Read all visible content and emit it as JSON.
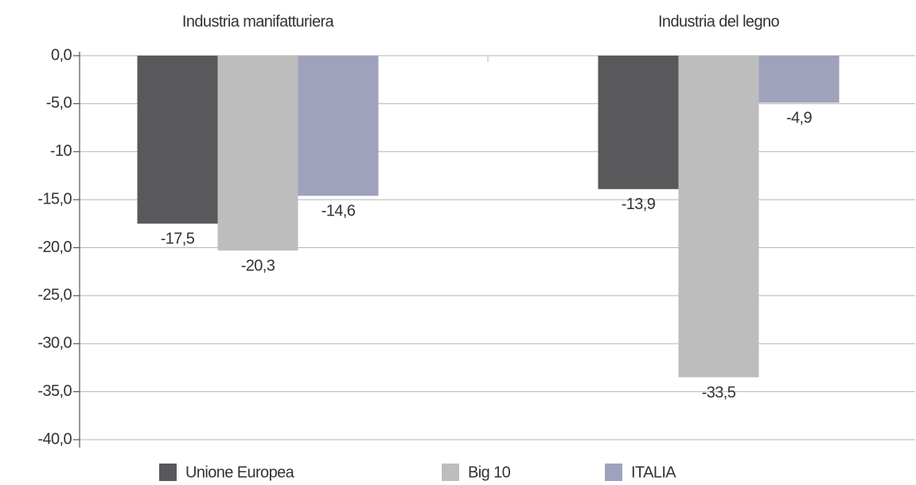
{
  "chart_data": {
    "type": "bar",
    "categories": [
      "Industria manifatturiera",
      "Industria del legno"
    ],
    "series": [
      {
        "name": "Unione Europea",
        "color": "#59595b",
        "values": [
          -17.5,
          -13.9
        ],
        "value_labels": [
          "-17,5",
          "-13,9"
        ]
      },
      {
        "name": "Big 10",
        "color": "#bdbdbd",
        "values": [
          -20.3,
          -33.5
        ],
        "value_labels": [
          "-20,3",
          "-33,5"
        ]
      },
      {
        "name": "ITALIA",
        "color": "#9fa2bd",
        "values": [
          -14.6,
          -4.9
        ],
        "value_labels": [
          "-14,6",
          "-4,9"
        ]
      }
    ],
    "ylim": [
      -40,
      0
    ],
    "yticks": [
      {
        "value": 0,
        "label": "0,0"
      },
      {
        "value": -5,
        "label": "-5,0"
      },
      -10,
      {
        "value": -15,
        "label": "-15,0"
      },
      {
        "value": -20,
        "label": "-20,0"
      },
      {
        "value": -25,
        "label": "-25,0"
      },
      {
        "value": -30,
        "label": "-30,0"
      },
      {
        "value": -35,
        "label": "-35,0"
      },
      {
        "value": -40,
        "label": "-40,0"
      }
    ],
    "grid": true,
    "legend": "bottom"
  }
}
